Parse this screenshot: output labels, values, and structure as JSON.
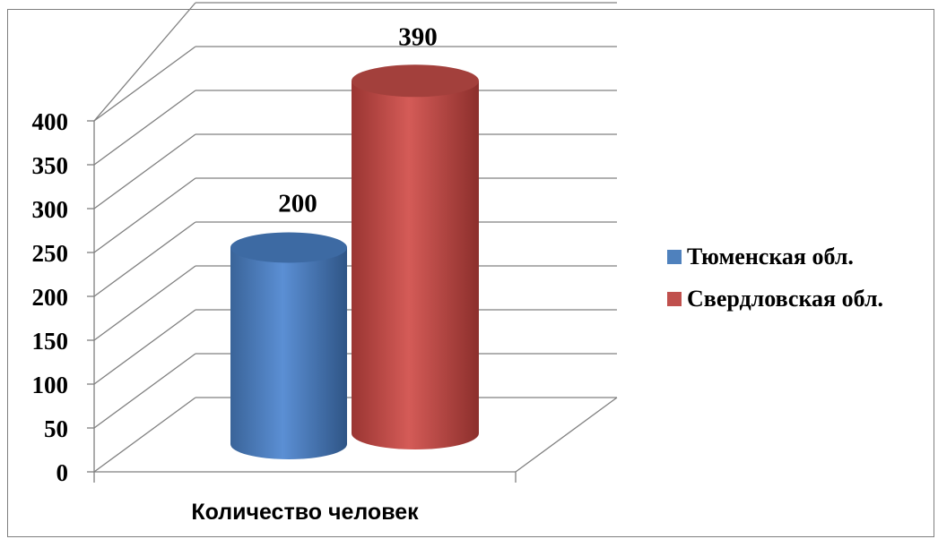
{
  "chart_data": {
    "type": "bar",
    "categories": [
      "Количество человек"
    ],
    "series": [
      {
        "name": "Тюменская обл.",
        "values": [
          200
        ],
        "color": "#4f81bd"
      },
      {
        "name": "Свердловская обл.",
        "values": [
          390
        ],
        "color": "#c0504d"
      }
    ],
    "title": "",
    "xlabel": "Количество человек",
    "ylabel": "",
    "ylim": [
      0,
      400
    ],
    "yticks": [
      "0",
      "50",
      "100",
      "150",
      "200",
      "250",
      "300",
      "350",
      "400"
    ],
    "grid": true,
    "legend_position": "right",
    "style": "3d-cylinder"
  }
}
